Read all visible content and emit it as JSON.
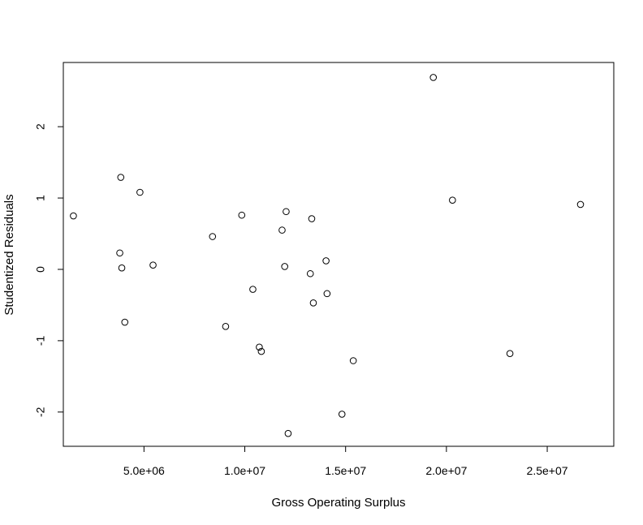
{
  "chart_data": {
    "type": "scatter",
    "title": "",
    "xlabel": "Gross Operating Surplus",
    "ylabel": "Studentized Residuals",
    "xlim": [
      1000000,
      28300000
    ],
    "ylim": [
      -2.48,
      2.9
    ],
    "grid": false,
    "marker": "open-circle",
    "x_ticks": [
      {
        "value": 5000000,
        "label": "5.0e+06"
      },
      {
        "value": 10000000,
        "label": "1.0e+07"
      },
      {
        "value": 15000000,
        "label": "1.5e+07"
      },
      {
        "value": 20000000,
        "label": "2.0e+07"
      },
      {
        "value": 25000000,
        "label": "2.5e+07"
      }
    ],
    "y_ticks": [
      {
        "value": -2,
        "label": "-2"
      },
      {
        "value": -1,
        "label": "-1"
      },
      {
        "value": 0,
        "label": "0"
      },
      {
        "value": 1,
        "label": "1"
      },
      {
        "value": 2,
        "label": "2"
      }
    ],
    "points": [
      {
        "x": 1500000,
        "y": 0.75
      },
      {
        "x": 3800000,
        "y": 0.23
      },
      {
        "x": 3850000,
        "y": 1.29
      },
      {
        "x": 3900000,
        "y": 0.02
      },
      {
        "x": 4050000,
        "y": -0.74
      },
      {
        "x": 4800000,
        "y": 1.08
      },
      {
        "x": 5450000,
        "y": 0.06
      },
      {
        "x": 8400000,
        "y": 0.46
      },
      {
        "x": 9050000,
        "y": -0.8
      },
      {
        "x": 9850000,
        "y": 0.76
      },
      {
        "x": 10400000,
        "y": -0.28
      },
      {
        "x": 10720000,
        "y": -1.09
      },
      {
        "x": 10820000,
        "y": -1.15
      },
      {
        "x": 11850000,
        "y": 0.55
      },
      {
        "x": 11980000,
        "y": 0.04
      },
      {
        "x": 12050000,
        "y": 0.81
      },
      {
        "x": 12150000,
        "y": -2.3
      },
      {
        "x": 13250000,
        "y": -0.06
      },
      {
        "x": 13320000,
        "y": 0.71
      },
      {
        "x": 13400000,
        "y": -0.47
      },
      {
        "x": 14030000,
        "y": 0.12
      },
      {
        "x": 14080000,
        "y": -0.34
      },
      {
        "x": 14820000,
        "y": -2.03
      },
      {
        "x": 15380000,
        "y": -1.28
      },
      {
        "x": 19350000,
        "y": 2.69
      },
      {
        "x": 20300000,
        "y": 0.97
      },
      {
        "x": 23150000,
        "y": -1.18
      },
      {
        "x": 26650000,
        "y": 0.91
      }
    ]
  }
}
